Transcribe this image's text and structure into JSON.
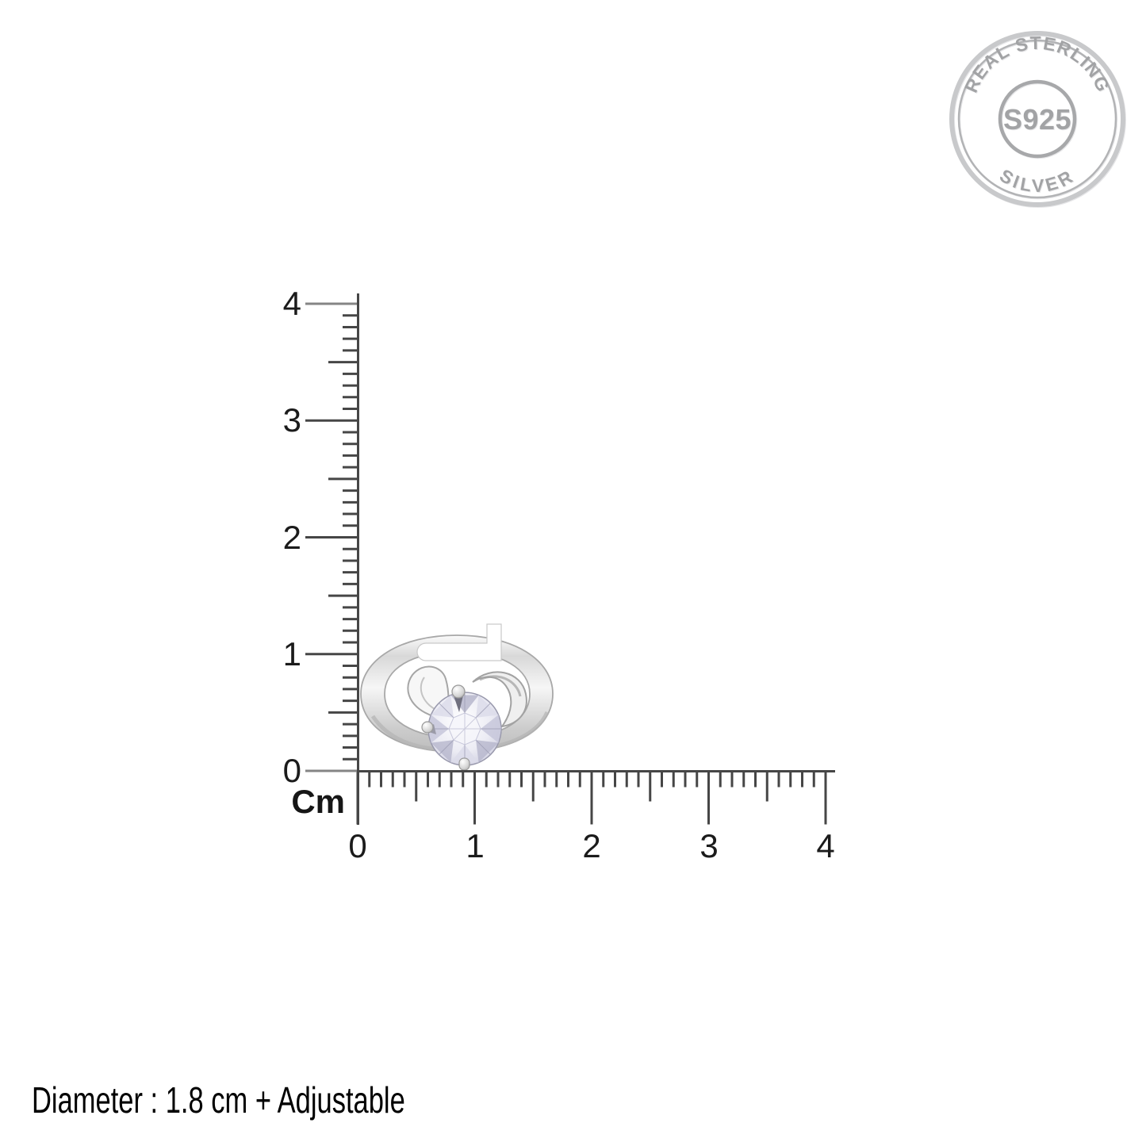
{
  "stamp": {
    "arc_top_text": "REAL STERLING",
    "center_text": "S925",
    "arc_bottom_text": "SILVER"
  },
  "ruler": {
    "unit_label": "Cm",
    "vertical_tick_labels": [
      "4",
      "3",
      "2",
      "1",
      "0"
    ],
    "horizontal_tick_labels": [
      "0",
      "1",
      "2",
      "3",
      "4"
    ],
    "range_cm": [
      0,
      4
    ],
    "minor_divisions_per_cm": 10
  },
  "ring_alt": "silver adjustable ring with round solitaire stone",
  "caption": {
    "text": "Diameter : 1.8 cm + Adjustable"
  },
  "colors": {
    "background": "#ffffff",
    "ruler_dark": "#464646",
    "ruler_gray_tick": "#858585",
    "label_text": "#1b1b1b",
    "caption_text": "#000000",
    "stamp_gray": "#a2a3a5",
    "stamp_ring_outer": "#c8c9cb",
    "stamp_ring_mid": "#b2b3b5",
    "silver_light": "#fbfbfb",
    "silver_mid": "#d8d8d8",
    "silver_dark": "#bdbdbd",
    "stone_facet_light": "#dcdcea",
    "stone_facet_mid": "#c7c7db",
    "stone_facet_dark": "#b3b3c9"
  }
}
